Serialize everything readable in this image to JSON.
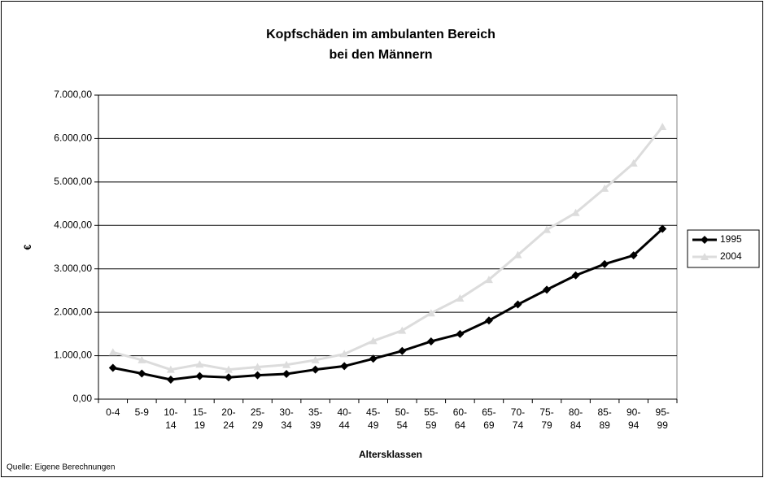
{
  "chart_data": {
    "type": "line",
    "title": "Kopfschäden im ambulanten Bereich",
    "subtitle": "bei den Männern",
    "x_label": "Altersklassen",
    "y_label": "€",
    "source": "Quelle: Eigene Berechnungen",
    "categories": [
      "0-4",
      "5-9",
      "10-14",
      "15-19",
      "20-24",
      "25-29",
      "30-34",
      "35-39",
      "40-44",
      "45-49",
      "50-54",
      "55-59",
      "60-64",
      "65-69",
      "70-74",
      "75-79",
      "80-84",
      "85-89",
      "90-94",
      "95-99"
    ],
    "series": [
      {
        "name": "1995",
        "color": "#000000",
        "marker": "diamond",
        "values": [
          720,
          590,
          450,
          530,
          500,
          550,
          580,
          680,
          760,
          930,
          1110,
          1330,
          1500,
          1810,
          2180,
          2520,
          2850,
          3110,
          3310,
          3920
        ]
      },
      {
        "name": "2004",
        "color": "#dcdcdc",
        "marker": "triangle",
        "values": [
          1080,
          900,
          680,
          800,
          680,
          740,
          790,
          900,
          1040,
          1340,
          1580,
          1980,
          2320,
          2750,
          3320,
          3900,
          4290,
          4850,
          5430,
          6270
        ]
      }
    ],
    "ylim": [
      0,
      7000
    ],
    "yticks": [
      {
        "value": 0,
        "label": "0,00"
      },
      {
        "value": 1000,
        "label": "1.000,00"
      },
      {
        "value": 2000,
        "label": "2.000,00"
      },
      {
        "value": 3000,
        "label": "3.000,00"
      },
      {
        "value": 4000,
        "label": "4.000,00"
      },
      {
        "value": 5000,
        "label": "5.000,00"
      },
      {
        "value": 6000,
        "label": "6.000,00"
      },
      {
        "value": 7000,
        "label": "7.000,00"
      }
    ],
    "grid": true,
    "legend": "right"
  }
}
